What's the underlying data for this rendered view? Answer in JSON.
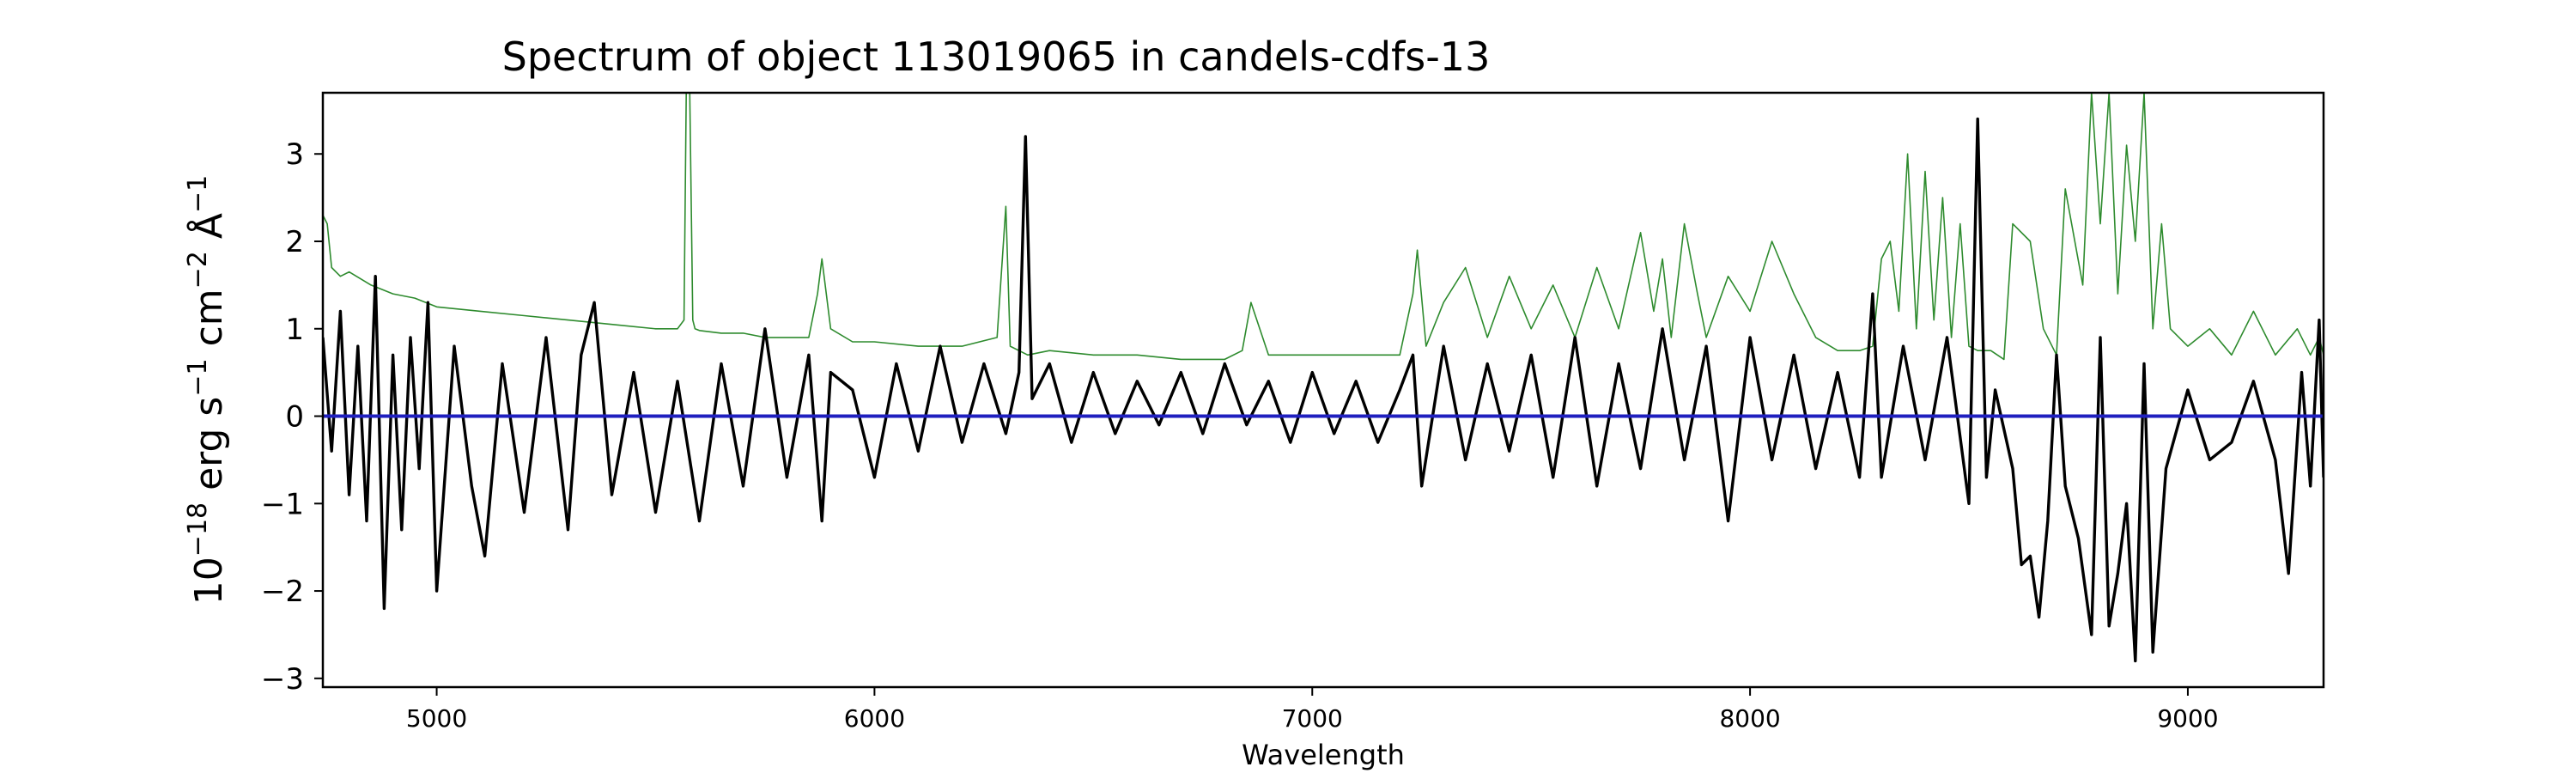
{
  "chart_data": {
    "type": "line",
    "title": "Spectrum of object 113019065 in candels-cdfs-13",
    "xlabel": "Wavelength",
    "ylabel": {
      "base": "10",
      "exp1": "−18",
      "unit1": " erg s",
      "exp2": "−1",
      "unit2": " cm",
      "exp3": "−2",
      "unit3": " Å",
      "exp4": "−1"
    },
    "xlim": [
      4740,
      9310
    ],
    "ylim": [
      -3.1,
      3.7
    ],
    "x_ticks": [
      5000,
      6000,
      7000,
      8000,
      9000
    ],
    "x_tick_labels": [
      "5000",
      "6000",
      "7000",
      "8000",
      "9000"
    ],
    "y_ticks": [
      -3,
      -2,
      -1,
      0,
      1,
      2,
      3
    ],
    "y_tick_labels": [
      "−3",
      "−2",
      "−1",
      "0",
      "1",
      "2",
      "3"
    ],
    "grid": false,
    "legend": "none",
    "series": [
      {
        "role": "flux",
        "color": "#000000",
        "x": [
          4740,
          4760,
          4780,
          4800,
          4820,
          4840,
          4860,
          4880,
          4900,
          4920,
          4940,
          4960,
          4980,
          5000,
          5040,
          5080,
          5110,
          5150,
          5200,
          5250,
          5300,
          5330,
          5360,
          5400,
          5450,
          5500,
          5550,
          5600,
          5650,
          5700,
          5750,
          5800,
          5850,
          5880,
          5900,
          5950,
          6000,
          6050,
          6100,
          6150,
          6200,
          6250,
          6300,
          6330,
          6345,
          6360,
          6400,
          6450,
          6500,
          6550,
          6600,
          6650,
          6700,
          6750,
          6800,
          6850,
          6900,
          6950,
          7000,
          7050,
          7100,
          7150,
          7200,
          7230,
          7250,
          7300,
          7350,
          7400,
          7450,
          7500,
          7550,
          7600,
          7650,
          7700,
          7750,
          7800,
          7850,
          7900,
          7950,
          8000,
          8050,
          8100,
          8150,
          8200,
          8250,
          8280,
          8300,
          8350,
          8400,
          8450,
          8500,
          8520,
          8540,
          8560,
          8600,
          8620,
          8640,
          8660,
          8680,
          8700,
          8720,
          8750,
          8780,
          8800,
          8820,
          8840,
          8860,
          8880,
          8900,
          8920,
          8950,
          9000,
          9050,
          9100,
          9150,
          9200,
          9230,
          9260,
          9280,
          9300,
          9310
        ],
        "y": [
          0.9,
          -0.4,
          1.2,
          -0.9,
          0.8,
          -1.2,
          1.6,
          -2.2,
          0.7,
          -1.3,
          0.9,
          -0.6,
          1.3,
          -2.0,
          0.8,
          -0.8,
          -1.6,
          0.6,
          -1.1,
          0.9,
          -1.3,
          0.7,
          1.3,
          -0.9,
          0.5,
          -1.1,
          0.4,
          -1.2,
          0.6,
          -0.8,
          1.0,
          -0.7,
          0.7,
          -1.2,
          0.5,
          0.3,
          -0.7,
          0.6,
          -0.4,
          0.8,
          -0.3,
          0.6,
          -0.2,
          0.5,
          3.2,
          0.2,
          0.6,
          -0.3,
          0.5,
          -0.2,
          0.4,
          -0.1,
          0.5,
          -0.2,
          0.6,
          -0.1,
          0.4,
          -0.3,
          0.5,
          -0.2,
          0.4,
          -0.3,
          0.3,
          0.7,
          -0.8,
          0.8,
          -0.5,
          0.6,
          -0.4,
          0.7,
          -0.7,
          0.9,
          -0.8,
          0.6,
          -0.6,
          1.0,
          -0.5,
          0.8,
          -1.2,
          0.9,
          -0.5,
          0.7,
          -0.6,
          0.5,
          -0.7,
          1.4,
          -0.7,
          0.8,
          -0.5,
          0.9,
          -1.0,
          3.4,
          -0.7,
          0.3,
          -0.6,
          -1.7,
          -1.6,
          -2.3,
          -1.2,
          0.7,
          -0.8,
          -1.4,
          -2.5,
          0.9,
          -2.4,
          -1.8,
          -1.0,
          -2.8,
          0.6,
          -2.7,
          -0.6,
          0.3,
          -0.5,
          -0.3,
          0.4,
          -0.5,
          -1.8,
          0.5,
          -0.8,
          1.1,
          -0.7
        ]
      },
      {
        "role": "noise",
        "color": "#2e8b2e",
        "x": [
          4740,
          4750,
          4760,
          4780,
          4800,
          4850,
          4900,
          4950,
          5000,
          5100,
          5200,
          5300,
          5400,
          5500,
          5550,
          5565,
          5570,
          5578,
          5585,
          5590,
          5600,
          5650,
          5700,
          5750,
          5800,
          5850,
          5870,
          5880,
          5900,
          5950,
          6000,
          6100,
          6200,
          6280,
          6300,
          6310,
          6350,
          6400,
          6500,
          6600,
          6700,
          6800,
          6840,
          6860,
          6900,
          7000,
          7100,
          7200,
          7230,
          7240,
          7260,
          7300,
          7350,
          7400,
          7450,
          7500,
          7550,
          7600,
          7650,
          7700,
          7750,
          7780,
          7800,
          7820,
          7850,
          7880,
          7900,
          7950,
          8000,
          8050,
          8100,
          8150,
          8200,
          8250,
          8280,
          8300,
          8320,
          8340,
          8360,
          8380,
          8400,
          8420,
          8440,
          8460,
          8480,
          8500,
          8520,
          8550,
          8580,
          8600,
          8640,
          8670,
          8700,
          8720,
          8760,
          8780,
          8800,
          8820,
          8840,
          8860,
          8880,
          8900,
          8920,
          8940,
          8960,
          9000,
          9050,
          9100,
          9150,
          9200,
          9250,
          9280,
          9300,
          9310
        ],
        "y": [
          2.3,
          2.2,
          1.7,
          1.6,
          1.65,
          1.5,
          1.4,
          1.35,
          1.25,
          1.2,
          1.15,
          1.1,
          1.05,
          1.0,
          1.0,
          1.1,
          3.7,
          3.7,
          1.1,
          1.0,
          0.98,
          0.95,
          0.95,
          0.9,
          0.9,
          0.9,
          1.4,
          1.8,
          1.0,
          0.85,
          0.85,
          0.8,
          0.8,
          0.9,
          2.4,
          0.8,
          0.7,
          0.75,
          0.7,
          0.7,
          0.65,
          0.65,
          0.75,
          1.3,
          0.7,
          0.7,
          0.7,
          0.7,
          1.4,
          1.9,
          0.8,
          1.3,
          1.7,
          0.9,
          1.6,
          1.0,
          1.5,
          0.9,
          1.7,
          1.0,
          2.1,
          1.2,
          1.8,
          0.9,
          2.2,
          1.4,
          0.9,
          1.6,
          1.2,
          2.0,
          1.4,
          0.9,
          0.75,
          0.75,
          0.8,
          1.8,
          2.0,
          1.2,
          3.0,
          1.0,
          2.8,
          1.1,
          2.5,
          0.9,
          2.2,
          0.8,
          0.75,
          0.75,
          0.65,
          2.2,
          2.0,
          1.0,
          0.7,
          2.6,
          1.5,
          3.7,
          2.2,
          3.7,
          1.4,
          3.1,
          2.0,
          3.7,
          1.0,
          2.2,
          1.0,
          0.8,
          1.0,
          0.7,
          1.2,
          0.7,
          1.0,
          0.7,
          0.9,
          0.7
        ]
      },
      {
        "role": "model",
        "color": "#1f1fbf",
        "x": [
          4740,
          9310
        ],
        "y": [
          0.0,
          0.0
        ]
      }
    ]
  }
}
